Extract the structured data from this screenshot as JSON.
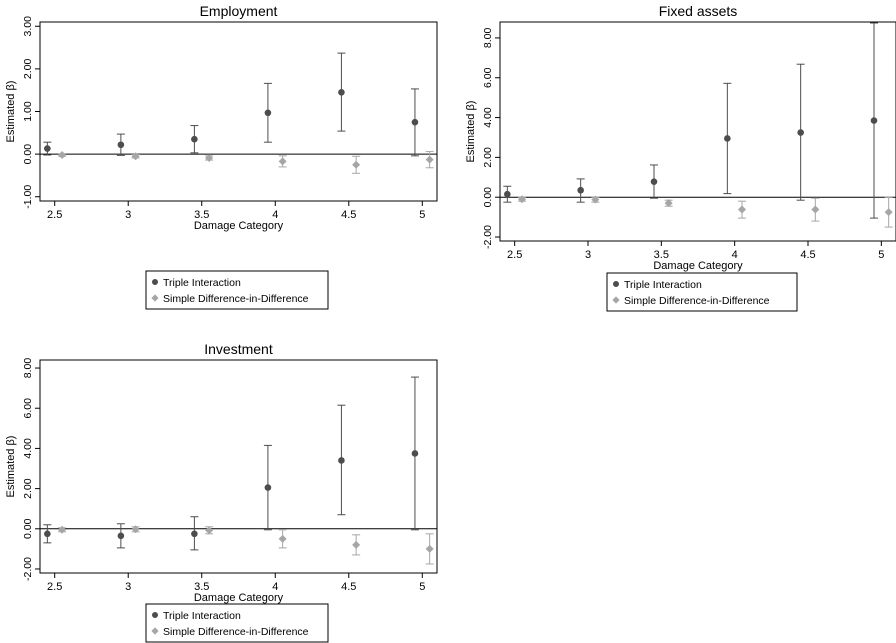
{
  "chart_data": [
    {
      "type": "scatter",
      "title": "Employment",
      "xlabel": "Damage Category",
      "ylabel": "Estimated β)",
      "xlim": [
        2.4,
        5.1
      ],
      "ylim": [
        -1.1,
        3.1
      ],
      "xticks": [
        "2.5",
        "3",
        "3.5",
        "4",
        "4.5",
        "5"
      ],
      "yticks": [
        "-1.00",
        "0.00",
        "1.00",
        "2.00",
        "3.00"
      ],
      "legend_position": "below",
      "series": [
        {
          "name": "Triple Interaction",
          "marker": "circle",
          "color": "#4d4d4d",
          "points": [
            {
              "x": 2.45,
              "y": 0.13,
              "lo": -0.02,
              "hi": 0.28
            },
            {
              "x": 2.95,
              "y": 0.22,
              "lo": -0.03,
              "hi": 0.47
            },
            {
              "x": 3.45,
              "y": 0.35,
              "lo": 0.03,
              "hi": 0.67
            },
            {
              "x": 3.95,
              "y": 0.97,
              "lo": 0.28,
              "hi": 1.66
            },
            {
              "x": 4.45,
              "y": 1.45,
              "lo": 0.54,
              "hi": 2.37
            },
            {
              "x": 4.95,
              "y": 0.75,
              "lo": -0.04,
              "hi": 1.53
            }
          ]
        },
        {
          "name": "Simple Difference-in-Difference",
          "marker": "diamond",
          "color": "#a6a6a6",
          "points": [
            {
              "x": 2.55,
              "y": -0.02,
              "lo": -0.05,
              "hi": 0.01
            },
            {
              "x": 3.05,
              "y": -0.05,
              "lo": -0.09,
              "hi": -0.01
            },
            {
              "x": 3.55,
              "y": -0.09,
              "lo": -0.14,
              "hi": -0.04
            },
            {
              "x": 4.05,
              "y": -0.17,
              "lo": -0.3,
              "hi": -0.04
            },
            {
              "x": 4.55,
              "y": -0.25,
              "lo": -0.45,
              "hi": -0.05
            },
            {
              "x": 5.05,
              "y": -0.13,
              "lo": -0.32,
              "hi": 0.06
            }
          ]
        }
      ]
    },
    {
      "type": "scatter",
      "title": "Fixed assets",
      "xlabel": "Damage Category",
      "ylabel": "Estimated β)",
      "xlim": [
        2.4,
        5.1
      ],
      "ylim": [
        -2.2,
        8.8
      ],
      "xticks": [
        "2.5",
        "3",
        "3.5",
        "4",
        "4.5",
        "5"
      ],
      "yticks": [
        "-2.00",
        "0.00",
        "2.00",
        "4.00",
        "6.00",
        "8.00"
      ],
      "legend_position": "below",
      "series": [
        {
          "name": "Triple Interaction",
          "marker": "circle",
          "color": "#4d4d4d",
          "points": [
            {
              "x": 2.45,
              "y": 0.15,
              "lo": -0.25,
              "hi": 0.55
            },
            {
              "x": 2.95,
              "y": 0.35,
              "lo": -0.25,
              "hi": 0.92
            },
            {
              "x": 3.45,
              "y": 0.78,
              "lo": -0.05,
              "hi": 1.62
            },
            {
              "x": 3.95,
              "y": 2.95,
              "lo": 0.18,
              "hi": 5.72
            },
            {
              "x": 4.45,
              "y": 3.25,
              "lo": -0.15,
              "hi": 6.68
            },
            {
              "x": 4.95,
              "y": 3.85,
              "lo": -1.05,
              "hi": 8.75
            }
          ]
        },
        {
          "name": "Simple Difference-in-Difference",
          "marker": "diamond",
          "color": "#a6a6a6",
          "points": [
            {
              "x": 2.55,
              "y": -0.1,
              "lo": -0.2,
              "hi": 0.0
            },
            {
              "x": 3.05,
              "y": -0.12,
              "lo": -0.25,
              "hi": 0.0
            },
            {
              "x": 3.55,
              "y": -0.3,
              "lo": -0.45,
              "hi": -0.15
            },
            {
              "x": 4.05,
              "y": -0.62,
              "lo": -1.05,
              "hi": -0.2
            },
            {
              "x": 4.55,
              "y": -0.62,
              "lo": -1.2,
              "hi": -0.05
            },
            {
              "x": 5.05,
              "y": -0.75,
              "lo": -1.5,
              "hi": 0.0
            }
          ]
        }
      ]
    },
    {
      "type": "scatter",
      "title": "Investment",
      "xlabel": "Damage Category",
      "ylabel": "Estimated β)",
      "xlim": [
        2.4,
        5.1
      ],
      "ylim": [
        -2.2,
        8.4
      ],
      "xticks": [
        "2.5",
        "3",
        "3.5",
        "4",
        "4.5",
        "5"
      ],
      "yticks": [
        "-2.00",
        "0.00",
        "2.00",
        "4.00",
        "6.00",
        "8.00"
      ],
      "legend_position": "below",
      "series": [
        {
          "name": "Triple Interaction",
          "marker": "circle",
          "color": "#4d4d4d",
          "points": [
            {
              "x": 2.45,
              "y": -0.25,
              "lo": -0.7,
              "hi": 0.2
            },
            {
              "x": 2.95,
              "y": -0.35,
              "lo": -0.95,
              "hi": 0.25
            },
            {
              "x": 3.45,
              "y": -0.25,
              "lo": -1.05,
              "hi": 0.6
            },
            {
              "x": 3.95,
              "y": 2.05,
              "lo": -0.05,
              "hi": 4.15
            },
            {
              "x": 4.45,
              "y": 3.4,
              "lo": 0.7,
              "hi": 6.15
            },
            {
              "x": 4.95,
              "y": 3.75,
              "lo": -0.05,
              "hi": 7.55
            }
          ]
        },
        {
          "name": "Simple Difference-in-Difference",
          "marker": "diamond",
          "color": "#a6a6a6",
          "points": [
            {
              "x": 2.55,
              "y": -0.05,
              "lo": -0.15,
              "hi": 0.05
            },
            {
              "x": 3.05,
              "y": -0.02,
              "lo": -0.15,
              "hi": 0.1
            },
            {
              "x": 3.55,
              "y": -0.08,
              "lo": -0.25,
              "hi": 0.1
            },
            {
              "x": 4.05,
              "y": -0.5,
              "lo": -0.95,
              "hi": -0.05
            },
            {
              "x": 4.55,
              "y": -0.8,
              "lo": -1.3,
              "hi": -0.3
            },
            {
              "x": 5.05,
              "y": -1.0,
              "lo": -1.75,
              "hi": -0.25
            }
          ]
        }
      ]
    }
  ]
}
